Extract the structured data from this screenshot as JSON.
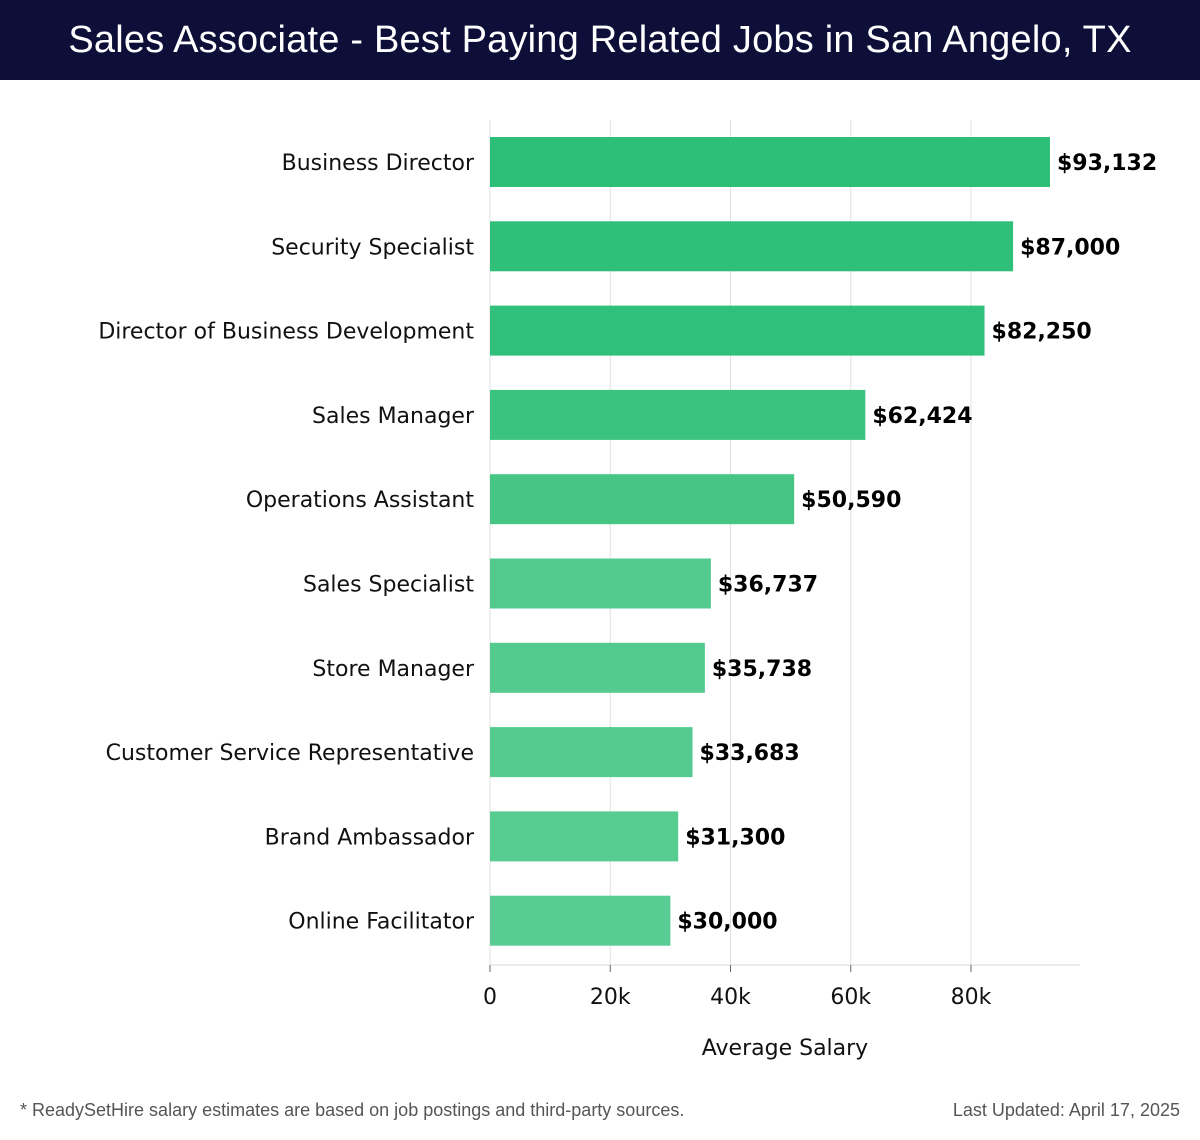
{
  "header": {
    "title": "Sales Associate - Best Paying Related Jobs in San Angelo, TX"
  },
  "footer": {
    "note": "* ReadySetHire salary estimates are based on job postings and third-party sources.",
    "updated": "Last Updated: April 17, 2025"
  },
  "chart_data": {
    "type": "bar",
    "orientation": "horizontal",
    "title": "Sales Associate - Best Paying Related Jobs in San Angelo, TX",
    "xlabel": "Average Salary",
    "ylabel": "",
    "xlim": [
      0,
      98000
    ],
    "x_ticks": [
      0,
      20000,
      40000,
      60000,
      80000
    ],
    "x_tick_labels": [
      "0",
      "20k",
      "40k",
      "60k",
      "80k"
    ],
    "grid": "vertical",
    "categories": [
      "Business Director",
      "Security Specialist",
      "Director of Business Development",
      "Sales Manager",
      "Operations Assistant",
      "Sales Specialist",
      "Store Manager",
      "Customer Service Representative",
      "Brand Ambassador",
      "Online Facilitator"
    ],
    "values": [
      93132,
      87000,
      82250,
      62424,
      50590,
      36737,
      35738,
      33683,
      31300,
      30000
    ],
    "value_labels": [
      "$93,132",
      "$87,000",
      "$82,250",
      "$62,424",
      "$50,590",
      "$36,737",
      "$35,738",
      "$33,683",
      "$31,300",
      "$30,000"
    ],
    "colors": [
      "#2dbe78",
      "#2fbf79",
      "#31c07b",
      "#3ac37f",
      "#45c685",
      "#52ca8d",
      "#53ca8e",
      "#55cb8f",
      "#57cc91",
      "#58cc92"
    ]
  }
}
